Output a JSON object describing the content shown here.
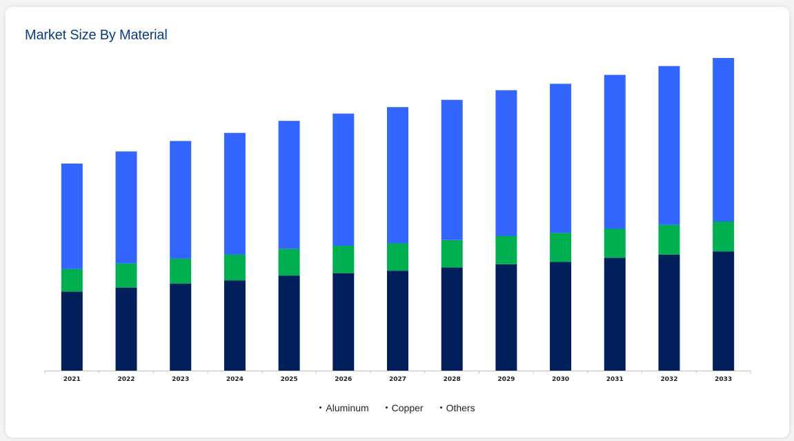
{
  "card": {
    "title": "Market Size By Material"
  },
  "chart_data": {
    "type": "bar",
    "stacked": true,
    "title": "Market Size By Material",
    "xlabel": "",
    "ylabel": "",
    "grid": false,
    "legend_position": "bottom",
    "categories": [
      "2021",
      "2022",
      "2023",
      "2024",
      "2025",
      "2026",
      "2027",
      "2028",
      "2029",
      "2030",
      "2031",
      "2032",
      "2033"
    ],
    "series": [
      {
        "name": "Aluminum",
        "color": "#001f5b",
        "values": [
          98,
          103,
          108,
          112,
          118,
          121,
          124,
          128,
          132,
          135,
          140,
          144,
          148
        ]
      },
      {
        "name": "Copper",
        "color": "#00b050",
        "values": [
          28,
          30,
          31,
          32,
          33,
          34,
          34,
          34,
          35,
          36,
          36,
          37,
          37
        ]
      },
      {
        "name": "Others",
        "color": "#3366ff",
        "values": [
          131,
          139,
          146,
          151,
          159,
          164,
          169,
          174,
          181,
          185,
          191,
          197,
          203
        ]
      }
    ],
    "ylim": [
      0,
      400
    ]
  }
}
